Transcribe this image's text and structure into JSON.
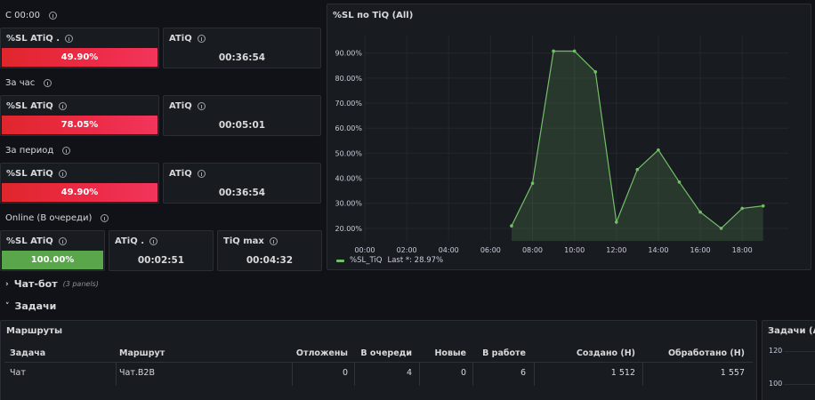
{
  "groups": [
    {
      "label": "С 00:00",
      "cards": [
        {
          "title": "%SL ATiQ .",
          "value": "49.90%",
          "kind": "bar-red"
        },
        {
          "title": "ATiQ",
          "value": "00:36:54",
          "kind": "text"
        }
      ]
    },
    {
      "label": "За час",
      "cards": [
        {
          "title": "%SL ATiQ",
          "value": "78.05%",
          "kind": "bar-red"
        },
        {
          "title": "ATiQ",
          "value": "00:05:01",
          "kind": "text"
        }
      ]
    },
    {
      "label": "За период",
      "cards": [
        {
          "title": "%SL ATiQ",
          "value": "49.90%",
          "kind": "bar-red"
        },
        {
          "title": "ATiQ",
          "value": "00:36:54",
          "kind": "text"
        }
      ]
    },
    {
      "label": "Online (В очереди)",
      "cards": [
        {
          "title": "%SL ATiQ",
          "value": "100.00%",
          "kind": "bar-green"
        },
        {
          "title": "ATiQ .",
          "value": "00:02:51",
          "kind": "text"
        },
        {
          "title": "TiQ max",
          "value": "00:04:32",
          "kind": "text"
        }
      ]
    }
  ],
  "chart_panel": {
    "title": "%SL по TiQ (All)",
    "legend_name": "%SL_TiQ",
    "legend_last": "Last *: 28.97%"
  },
  "chart_data": {
    "type": "area",
    "title": "%SL по TiQ (All)",
    "x": [
      "07:00",
      "08:00",
      "09:00",
      "10:00",
      "11:00",
      "12:00",
      "13:00",
      "14:00",
      "15:00",
      "16:00",
      "17:00",
      "18:00",
      "19:00"
    ],
    "series": [
      {
        "name": "%SL_TiQ",
        "values": [
          21.0,
          38.0,
          90.8,
          90.8,
          82.5,
          22.5,
          43.5,
          51.3,
          38.5,
          26.5,
          20.0,
          28.0,
          28.97
        ]
      }
    ],
    "x_ticks": [
      "00:00",
      "02:00",
      "04:00",
      "06:00",
      "08:00",
      "10:00",
      "12:00",
      "14:00",
      "16:00",
      "18:00"
    ],
    "y_ticks": [
      "20.00%",
      "30.00%",
      "40.00%",
      "50.00%",
      "60.00%",
      "70.00%",
      "80.00%",
      "90.00%"
    ],
    "ylim": [
      15,
      97
    ],
    "xlim_hours": [
      0,
      20.2
    ],
    "color": "#73bf69",
    "grid": true,
    "legend": "bottom-left"
  },
  "rows": [
    {
      "label": "Чат-бот",
      "note": "(3 panels)",
      "collapsed": true
    },
    {
      "label": "Задачи",
      "collapsed": false
    }
  ],
  "routes_table": {
    "title": "Маршруты",
    "columns": [
      "Задача",
      "Маршрут",
      "Отложены",
      "В очереди",
      "Новые",
      "В работе",
      "Создано (Н)",
      "Обработано (Н)"
    ],
    "rows": [
      [
        "Чат",
        "Чат.B2B",
        "0",
        "4",
        "0",
        "6",
        "1 512",
        "1 557"
      ]
    ]
  },
  "tasks_panel": {
    "title": "Задачи (All)",
    "y_ticks": [
      "120",
      "100"
    ]
  },
  "colors": {
    "background": "#111217",
    "panel": "#181b1f",
    "red": "#e0262c",
    "green": "#5aa64b",
    "series": "#73bf69"
  }
}
